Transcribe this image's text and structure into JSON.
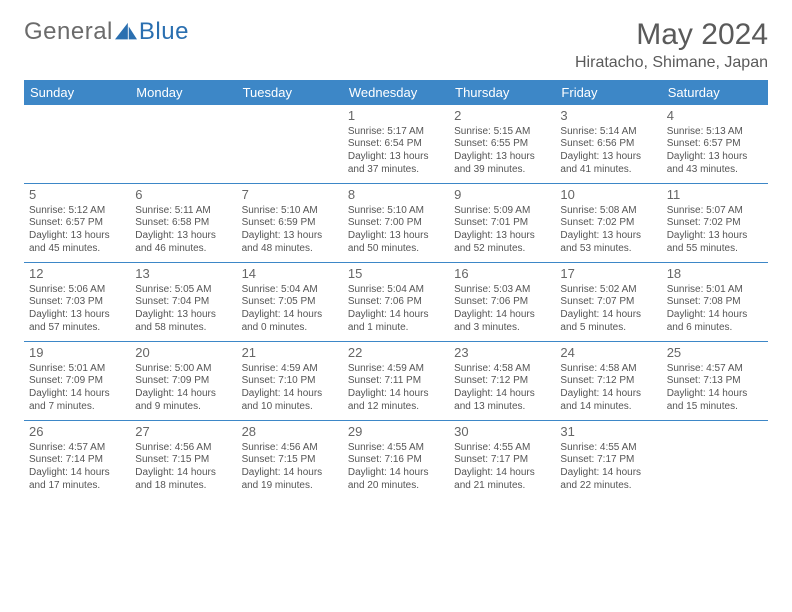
{
  "logo": {
    "text1": "General",
    "text2": "Blue"
  },
  "title": "May 2024",
  "location": "Hiratacho, Shimane, Japan",
  "colors": {
    "header_bg": "#3d87c7",
    "header_text": "#ffffff",
    "rule": "#3d87c7",
    "body_text": "#555555",
    "title_text": "#5a5a5a",
    "logo_gray": "#6b6b6b",
    "logo_blue": "#2a6fb0"
  },
  "day_names": [
    "Sunday",
    "Monday",
    "Tuesday",
    "Wednesday",
    "Thursday",
    "Friday",
    "Saturday"
  ],
  "weeks": [
    [
      null,
      null,
      null,
      {
        "n": "1",
        "sr": "5:17 AM",
        "ss": "6:54 PM",
        "dl": "13 hours and 37 minutes."
      },
      {
        "n": "2",
        "sr": "5:15 AM",
        "ss": "6:55 PM",
        "dl": "13 hours and 39 minutes."
      },
      {
        "n": "3",
        "sr": "5:14 AM",
        "ss": "6:56 PM",
        "dl": "13 hours and 41 minutes."
      },
      {
        "n": "4",
        "sr": "5:13 AM",
        "ss": "6:57 PM",
        "dl": "13 hours and 43 minutes."
      }
    ],
    [
      {
        "n": "5",
        "sr": "5:12 AM",
        "ss": "6:57 PM",
        "dl": "13 hours and 45 minutes."
      },
      {
        "n": "6",
        "sr": "5:11 AM",
        "ss": "6:58 PM",
        "dl": "13 hours and 46 minutes."
      },
      {
        "n": "7",
        "sr": "5:10 AM",
        "ss": "6:59 PM",
        "dl": "13 hours and 48 minutes."
      },
      {
        "n": "8",
        "sr": "5:10 AM",
        "ss": "7:00 PM",
        "dl": "13 hours and 50 minutes."
      },
      {
        "n": "9",
        "sr": "5:09 AM",
        "ss": "7:01 PM",
        "dl": "13 hours and 52 minutes."
      },
      {
        "n": "10",
        "sr": "5:08 AM",
        "ss": "7:02 PM",
        "dl": "13 hours and 53 minutes."
      },
      {
        "n": "11",
        "sr": "5:07 AM",
        "ss": "7:02 PM",
        "dl": "13 hours and 55 minutes."
      }
    ],
    [
      {
        "n": "12",
        "sr": "5:06 AM",
        "ss": "7:03 PM",
        "dl": "13 hours and 57 minutes."
      },
      {
        "n": "13",
        "sr": "5:05 AM",
        "ss": "7:04 PM",
        "dl": "13 hours and 58 minutes."
      },
      {
        "n": "14",
        "sr": "5:04 AM",
        "ss": "7:05 PM",
        "dl": "14 hours and 0 minutes."
      },
      {
        "n": "15",
        "sr": "5:04 AM",
        "ss": "7:06 PM",
        "dl": "14 hours and 1 minute."
      },
      {
        "n": "16",
        "sr": "5:03 AM",
        "ss": "7:06 PM",
        "dl": "14 hours and 3 minutes."
      },
      {
        "n": "17",
        "sr": "5:02 AM",
        "ss": "7:07 PM",
        "dl": "14 hours and 5 minutes."
      },
      {
        "n": "18",
        "sr": "5:01 AM",
        "ss": "7:08 PM",
        "dl": "14 hours and 6 minutes."
      }
    ],
    [
      {
        "n": "19",
        "sr": "5:01 AM",
        "ss": "7:09 PM",
        "dl": "14 hours and 7 minutes."
      },
      {
        "n": "20",
        "sr": "5:00 AM",
        "ss": "7:09 PM",
        "dl": "14 hours and 9 minutes."
      },
      {
        "n": "21",
        "sr": "4:59 AM",
        "ss": "7:10 PM",
        "dl": "14 hours and 10 minutes."
      },
      {
        "n": "22",
        "sr": "4:59 AM",
        "ss": "7:11 PM",
        "dl": "14 hours and 12 minutes."
      },
      {
        "n": "23",
        "sr": "4:58 AM",
        "ss": "7:12 PM",
        "dl": "14 hours and 13 minutes."
      },
      {
        "n": "24",
        "sr": "4:58 AM",
        "ss": "7:12 PM",
        "dl": "14 hours and 14 minutes."
      },
      {
        "n": "25",
        "sr": "4:57 AM",
        "ss": "7:13 PM",
        "dl": "14 hours and 15 minutes."
      }
    ],
    [
      {
        "n": "26",
        "sr": "4:57 AM",
        "ss": "7:14 PM",
        "dl": "14 hours and 17 minutes."
      },
      {
        "n": "27",
        "sr": "4:56 AM",
        "ss": "7:15 PM",
        "dl": "14 hours and 18 minutes."
      },
      {
        "n": "28",
        "sr": "4:56 AM",
        "ss": "7:15 PM",
        "dl": "14 hours and 19 minutes."
      },
      {
        "n": "29",
        "sr": "4:55 AM",
        "ss": "7:16 PM",
        "dl": "14 hours and 20 minutes."
      },
      {
        "n": "30",
        "sr": "4:55 AM",
        "ss": "7:17 PM",
        "dl": "14 hours and 21 minutes."
      },
      {
        "n": "31",
        "sr": "4:55 AM",
        "ss": "7:17 PM",
        "dl": "14 hours and 22 minutes."
      },
      null
    ]
  ],
  "labels": {
    "sunrise": "Sunrise:",
    "sunset": "Sunset:",
    "daylight": "Daylight:"
  }
}
